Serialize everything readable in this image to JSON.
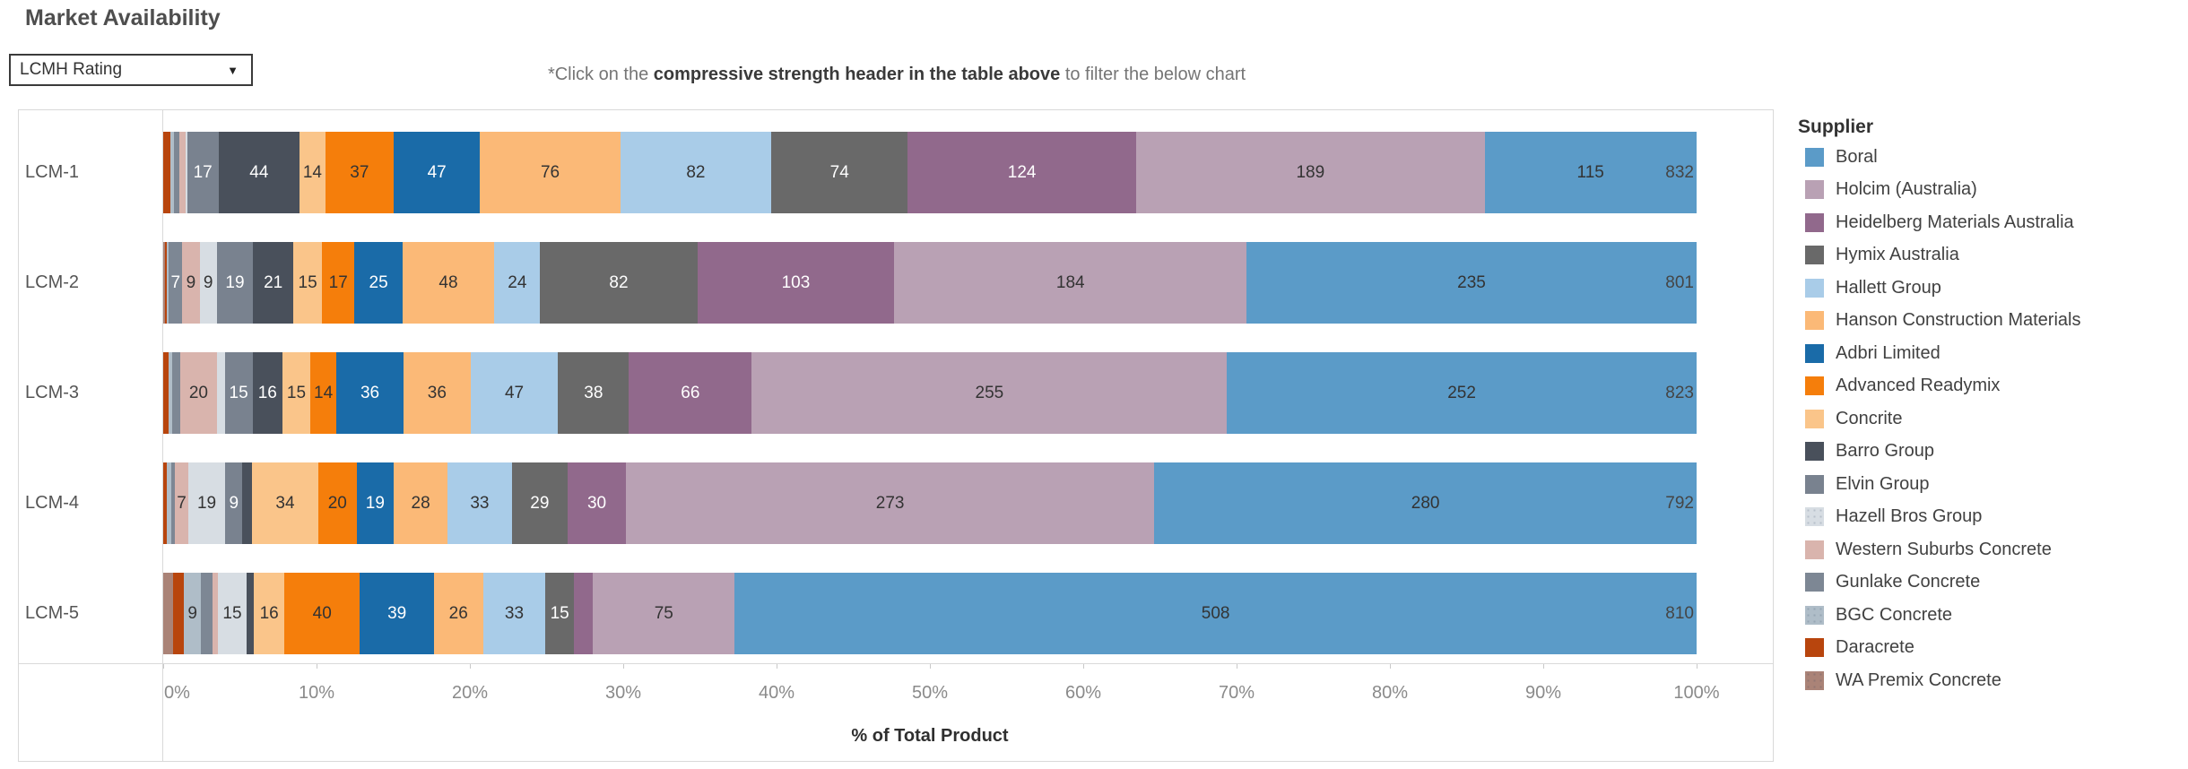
{
  "title": "Market Availability",
  "filter_dropdown": {
    "value": "LCMH Rating"
  },
  "instruction": {
    "prefix": "*Click on the ",
    "bold": "compressive strength header in the table above",
    "suffix": " to filter the below chart"
  },
  "legend": {
    "title": "Supplier"
  },
  "axis": {
    "xlabel": "% of Total Product"
  },
  "chart_data": {
    "type": "bar",
    "subtype": "stacked-horizontal-percent",
    "title": "Market Availability",
    "xlabel": "% of Total Product",
    "xlim": [
      0,
      100
    ],
    "x_tick_labels": [
      "0%",
      "10%",
      "20%",
      "30%",
      "40%",
      "50%",
      "60%",
      "70%",
      "80%",
      "90%",
      "100%"
    ],
    "grid": false,
    "legend_position": "right",
    "stack_order_note": "segments stacked left-to-right in reverse legend order (WA Premix Concrete leftmost, Boral rightmost)",
    "categories": [
      "LCM-1",
      "LCM-2",
      "LCM-3",
      "LCM-4",
      "LCM-5"
    ],
    "row_totals": [
      832,
      801,
      823,
      792,
      810
    ],
    "series": [
      {
        "name": "Boral",
        "color": "#5B9BC8",
        "label_color": "#333333",
        "pattern": "solid",
        "values": [
          115,
          235,
          252,
          280,
          508
        ]
      },
      {
        "name": "Holcim (Australia)",
        "color": "#B9A1B4",
        "label_color": "#333333",
        "pattern": "solid",
        "values": [
          189,
          184,
          255,
          273,
          75
        ]
      },
      {
        "name": "Heidelberg Materials Australia",
        "color": "#91698C",
        "label_color": "#ffffff",
        "pattern": "solid",
        "values": [
          124,
          103,
          66,
          30,
          10
        ]
      },
      {
        "name": "Hymix Australia",
        "color": "#696969",
        "label_color": "#ffffff",
        "pattern": "solid",
        "values": [
          74,
          82,
          38,
          29,
          15
        ]
      },
      {
        "name": "Hallett Group",
        "color": "#A9CCE8",
        "label_color": "#333333",
        "pattern": "solid",
        "values": [
          82,
          24,
          47,
          33,
          33
        ]
      },
      {
        "name": "Hanson Construction Materials",
        "color": "#FBB977",
        "label_color": "#333333",
        "pattern": "solid",
        "values": [
          76,
          48,
          36,
          28,
          26
        ]
      },
      {
        "name": "Adbri Limited",
        "color": "#1A6BA8",
        "label_color": "#ffffff",
        "pattern": "solid",
        "values": [
          47,
          25,
          36,
          19,
          39
        ]
      },
      {
        "name": "Advanced Readymix",
        "color": "#F57E0B",
        "label_color": "#333333",
        "pattern": "solid",
        "values": [
          37,
          17,
          14,
          20,
          40
        ]
      },
      {
        "name": "Concrite",
        "color": "#FAC58A",
        "label_color": "#333333",
        "pattern": "solid",
        "values": [
          14,
          15,
          15,
          34,
          16
        ]
      },
      {
        "name": "Barro Group",
        "color": "#49505B",
        "label_color": "#ffffff",
        "pattern": "solid",
        "values": [
          44,
          21,
          16,
          5,
          4
        ]
      },
      {
        "name": "Elvin Group",
        "color": "#79828F",
        "label_color": "#ffffff",
        "pattern": "solid",
        "values": [
          17,
          19,
          15,
          9,
          0
        ]
      },
      {
        "name": "Hazell Bros Group",
        "color": "#D7DDE3",
        "label_color": "#333333",
        "pattern": "dots",
        "values": [
          1,
          9,
          4,
          19,
          15
        ]
      },
      {
        "name": "Western Suburbs Concrete",
        "color": "#D9B4AD",
        "label_color": "#333333",
        "pattern": "solid",
        "values": [
          3,
          9,
          20,
          7,
          3
        ]
      },
      {
        "name": "Gunlake Concrete",
        "color": "#7D8794",
        "label_color": "#ffffff",
        "pattern": "solid",
        "values": [
          3,
          7,
          4,
          2,
          6
        ]
      },
      {
        "name": "BGC Concrete",
        "color": "#AFBDC8",
        "label_color": "#333333",
        "pattern": "dots",
        "values": [
          2,
          1,
          2,
          2,
          9
        ]
      },
      {
        "name": "Daracrete",
        "color": "#B8450D",
        "label_color": "#ffffff",
        "pattern": "solid",
        "values": [
          4,
          1,
          3,
          2,
          6
        ]
      },
      {
        "name": "WA Premix Concrete",
        "color": "#AA8377",
        "label_color": "#333333",
        "pattern": "dots",
        "values": [
          0,
          1,
          0,
          0,
          5
        ]
      }
    ]
  }
}
